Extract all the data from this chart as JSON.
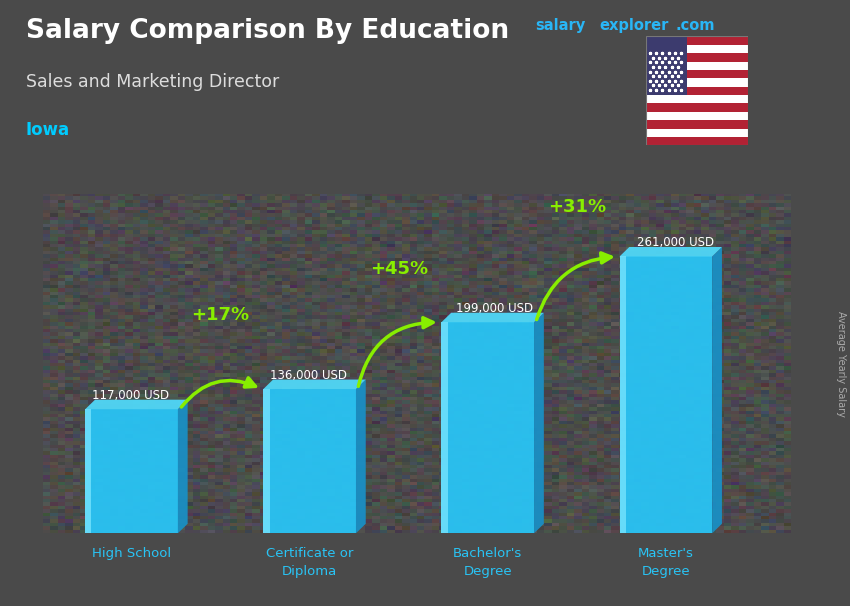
{
  "title": "Salary Comparison By Education",
  "subtitle": "Sales and Marketing Director",
  "location": "Iowa",
  "ylabel": "Average Yearly Salary",
  "categories": [
    "High School",
    "Certificate or\nDiploma",
    "Bachelor's\nDegree",
    "Master's\nDegree"
  ],
  "values": [
    117000,
    136000,
    199000,
    261000
  ],
  "labels": [
    "117,000 USD",
    "136,000 USD",
    "199,000 USD",
    "261,000 USD"
  ],
  "pct_labels": [
    "+17%",
    "+45%",
    "+31%"
  ],
  "bar_color_front": "#29c4f5",
  "bar_color_side": "#1a8fc4",
  "bar_color_top": "#50d8f8",
  "bar_color_highlight": "#80e8ff",
  "arrow_color": "#88ee00",
  "title_color": "#ffffff",
  "subtitle_color": "#e0e0e0",
  "location_color": "#00ccff",
  "label_color": "#ffffff",
  "pct_color": "#88ee00",
  "bg_color": "#4a4a4a",
  "watermark_color": "#29b6f6",
  "watermark": "salaryexplorer.com",
  "ylim": [
    0,
    320000
  ],
  "figsize": [
    8.5,
    6.06
  ],
  "dpi": 100
}
